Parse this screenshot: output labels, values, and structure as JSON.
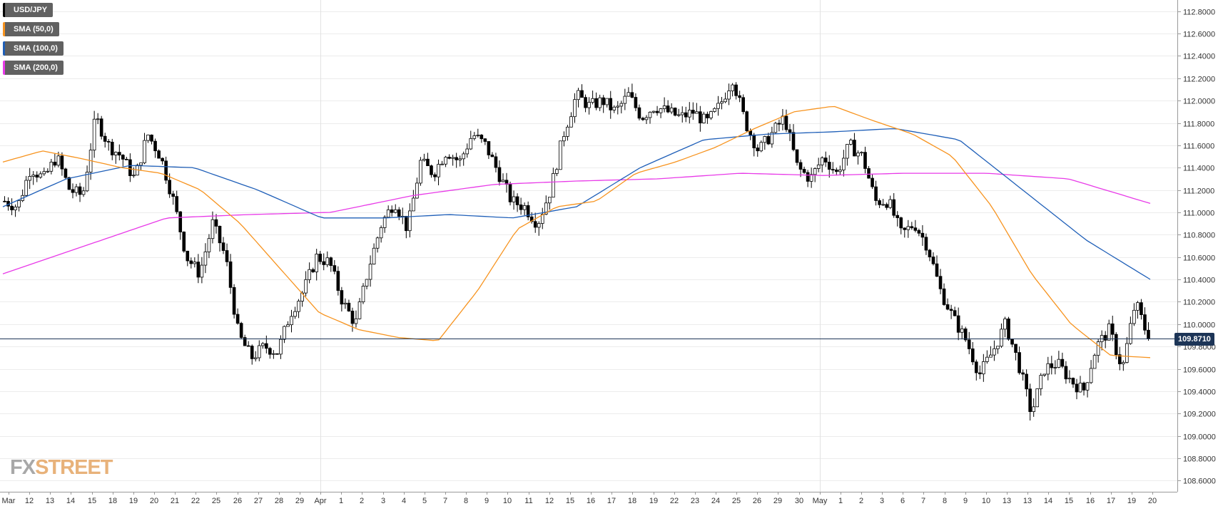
{
  "chart_data": {
    "type": "candlestick",
    "symbol": "USD/JPY",
    "legend": [
      {
        "label": "USD/JPY",
        "color": "#000000"
      },
      {
        "label": "SMA (50,0)",
        "color": "#f7931e"
      },
      {
        "label": "SMA (100,0)",
        "color": "#1f5fb8"
      },
      {
        "label": "SMA (200,0)",
        "color": "#e83ae8"
      }
    ],
    "y_axis": {
      "min": 108.5,
      "max": 112.9,
      "ticks": [
        "112.8000",
        "112.6000",
        "112.4000",
        "112.2000",
        "112.0000",
        "111.8000",
        "111.6000",
        "111.4000",
        "111.2000",
        "111.0000",
        "110.8000",
        "110.6000",
        "110.4000",
        "110.2000",
        "110.0000",
        "109.8000",
        "109.6000",
        "109.4000",
        "109.2000",
        "109.0000",
        "108.8000",
        "108.6000"
      ]
    },
    "x_axis": {
      "labels": [
        "Mar",
        "12",
        "13",
        "14",
        "15",
        "18",
        "19",
        "20",
        "21",
        "22",
        "25",
        "26",
        "27",
        "28",
        "29",
        "Apr",
        "1",
        "2",
        "3",
        "4",
        "5",
        "7",
        "8",
        "9",
        "10",
        "11",
        "12",
        "15",
        "16",
        "17",
        "18",
        "19",
        "22",
        "23",
        "24",
        "25",
        "26",
        "29",
        "30",
        "May",
        "1",
        "2",
        "3",
        "6",
        "7",
        "8",
        "9",
        "10",
        "13",
        "13",
        "14",
        "15",
        "16",
        "17",
        "19",
        "20"
      ],
      "month_markers": [
        "Apr",
        "May"
      ]
    },
    "current_price": {
      "value": 109.871,
      "label": "109.8710"
    },
    "price_anchors": [
      111.1,
      111.05,
      111.4,
      111.3,
      111.5,
      111.2,
      111.15,
      111.85,
      111.6,
      111.5,
      111.3,
      111.7,
      111.5,
      111.1,
      110.6,
      110.45,
      110.9,
      110.6,
      109.9,
      109.7,
      109.8,
      109.75,
      110.1,
      110.3,
      110.6,
      110.55,
      110.2,
      110.0,
      110.5,
      110.9,
      111.1,
      110.85,
      111.45,
      111.35,
      111.55,
      111.45,
      111.7,
      111.6,
      111.35,
      111.1,
      111.05,
      110.9,
      111.2,
      111.7,
      112.05,
      111.95,
      112.0,
      111.9,
      112.05,
      111.85,
      111.95,
      111.9,
      111.85,
      111.9,
      111.8,
      111.95,
      112.2,
      111.8,
      111.55,
      111.7,
      111.85,
      111.4,
      111.3,
      111.5,
      111.35,
      111.6,
      111.5,
      111.1,
      111.1,
      110.8,
      110.9,
      110.7,
      110.3,
      110.05,
      109.85,
      109.55,
      109.75,
      110.0,
      109.65,
      109.2,
      109.6,
      109.65,
      109.5,
      109.4,
      109.8,
      109.95,
      109.6,
      110.2,
      109.871
    ],
    "sma50_anchors": [
      111.45,
      111.55,
      111.48,
      111.4,
      111.35,
      111.2,
      110.9,
      110.5,
      110.1,
      109.95,
      109.88,
      109.85,
      110.3,
      110.85,
      111.05,
      111.1,
      111.35,
      111.45,
      111.58,
      111.75,
      111.9,
      111.95,
      111.82,
      111.7,
      111.5,
      111.05,
      110.45,
      110.0,
      109.72,
      109.7
    ],
    "sma100_anchors": [
      111.05,
      111.3,
      111.42,
      111.4,
      111.2,
      110.95,
      110.95,
      110.98,
      110.95,
      111.05,
      111.4,
      111.65,
      111.7,
      111.72,
      111.75,
      111.65,
      111.2,
      110.75,
      110.4
    ],
    "sma200_anchors": [
      110.45,
      110.7,
      110.95,
      110.98,
      111.0,
      111.15,
      111.25,
      111.28,
      111.3,
      111.35,
      111.33,
      111.35,
      111.35,
      111.3,
      111.08
    ]
  }
}
